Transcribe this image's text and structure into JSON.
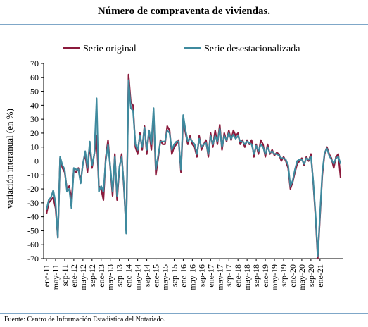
{
  "chart_data": {
    "type": "line",
    "title": "Número de compraventa de viviendas.",
    "ylabel": "variación interanual  (en %)",
    "xlabel": "",
    "ylim": [
      -70,
      70
    ],
    "yticks": [
      70,
      60,
      50,
      40,
      30,
      20,
      10,
      0,
      -10,
      -20,
      -30,
      -40,
      -50,
      -60,
      -70
    ],
    "grid": false,
    "legend_position": "top",
    "x_tick_labels": [
      "ene-11",
      "may-11",
      "sep-11",
      "ene-12",
      "may-12",
      "sep-12",
      "ene-13",
      "may-13",
      "sep-13",
      "ene-14",
      "may-14",
      "sep-14",
      "ene-15",
      "may-15",
      "sep-15",
      "ene-16",
      "may-16",
      "sep-16",
      "ene-17",
      "may-17",
      "sep-17",
      "ene-18",
      "may-18",
      "sep-18",
      "ene-19",
      "may-19",
      "sep-19",
      "ene-20",
      "may-20",
      "sep-20",
      "ene-21"
    ],
    "series": [
      {
        "name": "Serie original",
        "color": "#8b1a3c",
        "values": [
          -38,
          -30,
          -28,
          -26,
          -34,
          -55,
          2,
          -5,
          -8,
          -20,
          -18,
          -28,
          -6,
          -8,
          -5,
          -15,
          -2,
          5,
          -8,
          12,
          -5,
          5,
          18,
          -18,
          -20,
          -28,
          2,
          15,
          -5,
          -25,
          5,
          -28,
          -5,
          5,
          -20,
          -50,
          62,
          42,
          40,
          10,
          5,
          20,
          8,
          25,
          5,
          22,
          8,
          35,
          -10,
          2,
          15,
          12,
          12,
          25,
          22,
          5,
          10,
          12,
          15,
          -8,
          30,
          20,
          12,
          18,
          12,
          10,
          3,
          18,
          8,
          12,
          15,
          3,
          20,
          10,
          22,
          12,
          26,
          8,
          20,
          14,
          22,
          15,
          22,
          18,
          20,
          12,
          15,
          10,
          15,
          12,
          15,
          3,
          12,
          5,
          15,
          12,
          3,
          12,
          5,
          8,
          4,
          6,
          5,
          0,
          3,
          0,
          -5,
          -20,
          -15,
          -8,
          -2,
          0,
          2,
          -3,
          3,
          0,
          5,
          -15,
          -40,
          -70,
          -40,
          -10,
          5,
          10,
          5,
          2,
          -5,
          3,
          5,
          -12
        ]
      },
      {
        "name": "Serie desestacionalizada",
        "color": "#3f8a9e",
        "values": [
          -35,
          -28,
          -26,
          -21,
          -30,
          -55,
          3,
          -3,
          -6,
          -22,
          -20,
          -34,
          -5,
          -6,
          -6,
          -16,
          -2,
          7,
          -5,
          14,
          -3,
          5,
          45,
          -22,
          -18,
          -22,
          0,
          12,
          -4,
          -22,
          3,
          -25,
          -4,
          3,
          -18,
          -52,
          58,
          38,
          36,
          12,
          8,
          18,
          10,
          24,
          8,
          22,
          12,
          38,
          -6,
          4,
          14,
          14,
          14,
          22,
          20,
          8,
          12,
          14,
          14,
          -6,
          33,
          22,
          14,
          16,
          14,
          12,
          5,
          16,
          10,
          12,
          13,
          5,
          18,
          12,
          18,
          14,
          23,
          10,
          18,
          15,
          20,
          16,
          19,
          16,
          18,
          14,
          14,
          12,
          14,
          13,
          12,
          5,
          11,
          7,
          12,
          10,
          5,
          10,
          6,
          7,
          5,
          5,
          4,
          2,
          2,
          1,
          -3,
          -18,
          -14,
          -6,
          0,
          1,
          1,
          -2,
          2,
          1,
          3,
          -14,
          -38,
          -68,
          -38,
          -8,
          6,
          9,
          4,
          1,
          -2,
          2,
          3,
          -2
        ]
      }
    ]
  },
  "footer": {
    "source": "Fuente: Centro de Información Estadística del Notariado."
  }
}
